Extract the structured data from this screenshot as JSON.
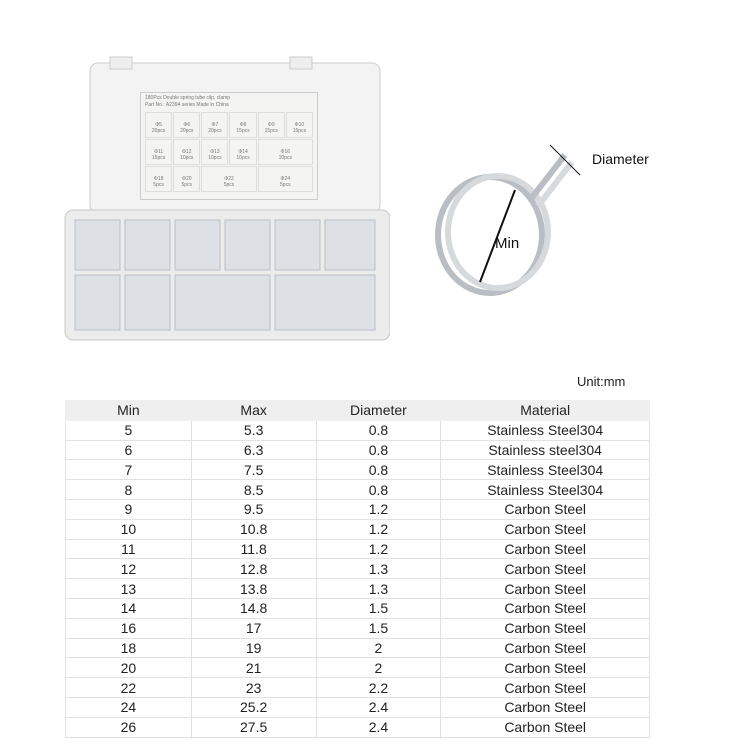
{
  "box_label": {
    "title": "180Pcs Double spring tube clip, clamp",
    "subtitle": "Part No.: A2394 series Made in China",
    "cells": [
      {
        "size": "Φ5",
        "qty": "20pcs"
      },
      {
        "size": "Φ6",
        "qty": "20pcs"
      },
      {
        "size": "Φ7",
        "qty": "20pcs"
      },
      {
        "size": "Φ8",
        "qty": "15pcs"
      },
      {
        "size": "Φ9",
        "qty": "15pcs"
      },
      {
        "size": "Φ10",
        "qty": "15pcs"
      },
      {
        "size": "Φ11",
        "qty": "15pcs"
      },
      {
        "size": "Φ12",
        "qty": "10pcs"
      },
      {
        "size": "Φ13",
        "qty": "10pcs"
      },
      {
        "size": "Φ14",
        "qty": "10pcs"
      },
      {
        "size": "Φ16",
        "qty": "10pcs"
      },
      {
        "size": "Φ18",
        "qty": "5pcs"
      },
      {
        "size": "Φ20",
        "qty": "5pcs"
      },
      {
        "size": "Φ22",
        "qty": "5pcs"
      },
      {
        "size": "Φ24",
        "qty": "5pcs"
      }
    ]
  },
  "diagram": {
    "diameter_label": "Diameter",
    "min_label": "Min"
  },
  "unit": "Unit:mm",
  "table": {
    "headers": [
      "Min",
      "Max",
      "Diameter",
      "Material"
    ],
    "rows": [
      [
        "5",
        "5.3",
        "0.8",
        "Stainless Steel304"
      ],
      [
        "6",
        "6.3",
        "0.8",
        "Stainless steel304"
      ],
      [
        "7",
        "7.5",
        "0.8",
        "Stainless Steel304"
      ],
      [
        "8",
        "8.5",
        "0.8",
        "Stainless Steel304"
      ],
      [
        "9",
        "9.5",
        "1.2",
        "Carbon Steel"
      ],
      [
        "10",
        "10.8",
        "1.2",
        "Carbon Steel"
      ],
      [
        "11",
        "11.8",
        "1.2",
        "Carbon Steel"
      ],
      [
        "12",
        "12.8",
        "1.3",
        "Carbon Steel"
      ],
      [
        "13",
        "13.8",
        "1.3",
        "Carbon Steel"
      ],
      [
        "14",
        "14.8",
        "1.5",
        "Carbon Steel"
      ],
      [
        "16",
        "17",
        "1.5",
        "Carbon Steel"
      ],
      [
        "18",
        "19",
        "2",
        "Carbon Steel"
      ],
      [
        "20",
        "21",
        "2",
        "Carbon Steel"
      ],
      [
        "22",
        "23",
        "2.2",
        "Carbon Steel"
      ],
      [
        "24",
        "25.2",
        "2.4",
        "Carbon Steel"
      ],
      [
        "26",
        "27.5",
        "2.4",
        "Carbon Steel"
      ]
    ]
  }
}
